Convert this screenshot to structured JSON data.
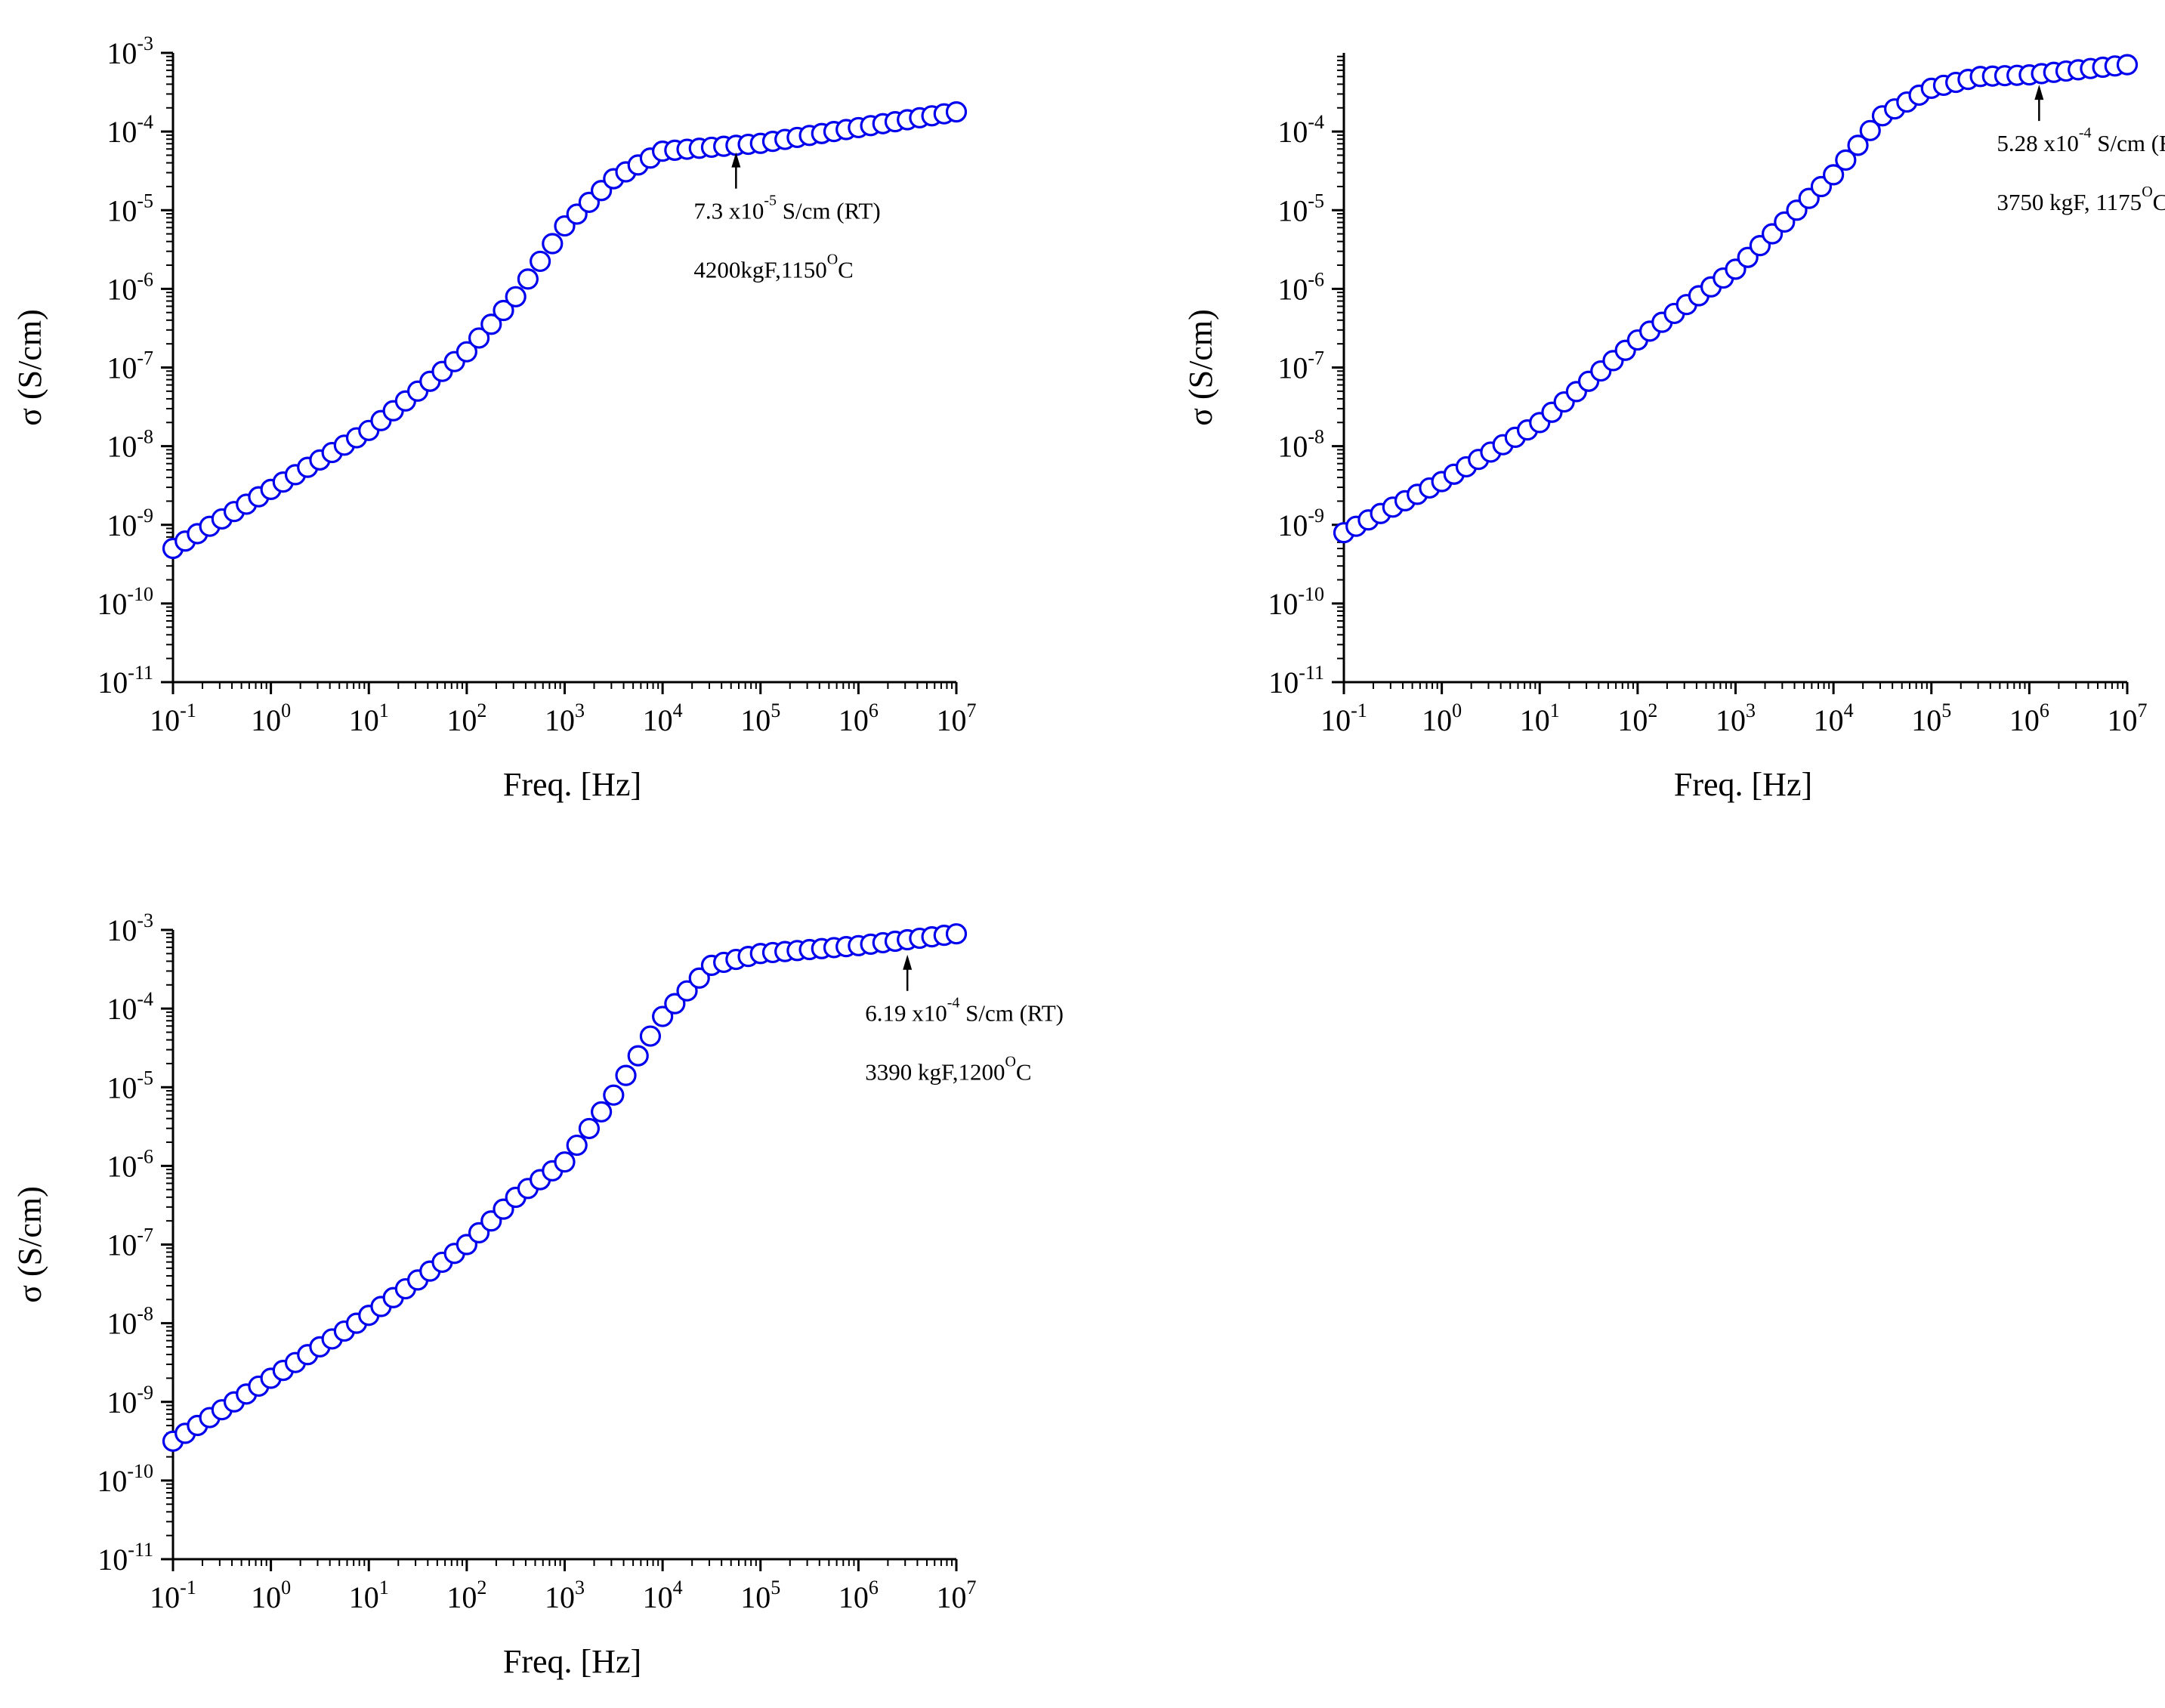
{
  "marker_color": "#0000EE",
  "chart_data": [
    {
      "type": "scatter",
      "title": "",
      "xlabel": "Freq. [Hz]",
      "ylabel": "σ (S/cm)",
      "xscale": "log",
      "yscale": "log",
      "xlim_exp": [
        -1,
        7
      ],
      "ylim_exp": [
        -11,
        -3
      ],
      "x_tick_labels": [
        {
          "base": "10",
          "exp": "-1"
        },
        {
          "base": "10",
          "exp": "0"
        },
        {
          "base": "10",
          "exp": "1"
        },
        {
          "base": "10",
          "exp": "2"
        },
        {
          "base": "10",
          "exp": "3"
        },
        {
          "base": "10",
          "exp": "4"
        },
        {
          "base": "10",
          "exp": "5"
        },
        {
          "base": "10",
          "exp": "6"
        },
        {
          "base": "10",
          "exp": "7"
        }
      ],
      "y_tick_labels": [
        {
          "base": "10",
          "exp": "-11"
        },
        {
          "base": "10",
          "exp": "-10"
        },
        {
          "base": "10",
          "exp": "-9"
        },
        {
          "base": "10",
          "exp": "-8"
        },
        {
          "base": "10",
          "exp": "-7"
        },
        {
          "base": "10",
          "exp": "-6"
        },
        {
          "base": "10",
          "exp": "-5"
        },
        {
          "base": "10",
          "exp": "-4"
        },
        {
          "base": "10",
          "exp": "-3"
        }
      ],
      "curve_knots_log": [
        [
          -1,
          -9.3
        ],
        [
          0,
          -8.55
        ],
        [
          1,
          -7.8
        ],
        [
          2,
          -6.8
        ],
        [
          2.5,
          -6.1
        ],
        [
          3,
          -5.2
        ],
        [
          3.5,
          -4.6
        ],
        [
          4,
          -4.25
        ],
        [
          5,
          -4.15
        ],
        [
          6,
          -3.95
        ],
        [
          7,
          -3.75
        ]
      ],
      "arrow_at_log": [
        4.75,
        -4.13
      ],
      "annotation_lines": [
        {
          "pre": "7.3 x10",
          "sup": "-5",
          "post": " S/cm (RT)"
        },
        {
          "pre": "4200kgF,1150",
          "sup": "O",
          "post": "C"
        }
      ]
    },
    {
      "type": "scatter",
      "title": "",
      "xlabel": "Freq. [Hz]",
      "ylabel": "σ (S/cm)",
      "xscale": "log",
      "yscale": "log",
      "xlim_exp": [
        -1,
        7
      ],
      "ylim_exp": [
        -11,
        -3
      ],
      "x_tick_labels": [
        {
          "base": "10",
          "exp": "-1"
        },
        {
          "base": "10",
          "exp": "0"
        },
        {
          "base": "10",
          "exp": "1"
        },
        {
          "base": "10",
          "exp": "2"
        },
        {
          "base": "10",
          "exp": "3"
        },
        {
          "base": "10",
          "exp": "4"
        },
        {
          "base": "10",
          "exp": "5"
        },
        {
          "base": "10",
          "exp": "6"
        },
        {
          "base": "10",
          "exp": "7"
        }
      ],
      "y_tick_labels": [
        {
          "base": "10",
          "exp": "-11"
        },
        {
          "base": "10",
          "exp": "-10"
        },
        {
          "base": "10",
          "exp": "-9"
        },
        {
          "base": "10",
          "exp": "-8"
        },
        {
          "base": "10",
          "exp": "-7"
        },
        {
          "base": "10",
          "exp": "-6"
        },
        {
          "base": "10",
          "exp": "-5"
        },
        {
          "base": "10",
          "exp": "-4"
        }
      ],
      "curve_knots_log": [
        [
          -1,
          -9.1
        ],
        [
          0,
          -8.45
        ],
        [
          1,
          -7.7
        ],
        [
          2,
          -6.65
        ],
        [
          3,
          -5.75
        ],
        [
          4,
          -4.55
        ],
        [
          4.5,
          -3.8
        ],
        [
          5,
          -3.45
        ],
        [
          5.5,
          -3.3
        ],
        [
          6,
          -3.28
        ],
        [
          7,
          -3.15
        ]
      ],
      "arrow_at_log": [
        6.1,
        -3.27
      ],
      "annotation_lines": [
        {
          "pre": "5.28 x10",
          "sup": "-4",
          "post": " S/cm (RT)"
        },
        {
          "pre": "3750 kgF, 1175",
          "sup": "O",
          "post": "C"
        }
      ]
    },
    {
      "type": "scatter",
      "title": "",
      "xlabel": "Freq. [Hz]",
      "ylabel": "σ (S/cm)",
      "xscale": "log",
      "yscale": "log",
      "xlim_exp": [
        -1,
        7
      ],
      "ylim_exp": [
        -11,
        -3
      ],
      "x_tick_labels": [
        {
          "base": "10",
          "exp": "-1"
        },
        {
          "base": "10",
          "exp": "0"
        },
        {
          "base": "10",
          "exp": "1"
        },
        {
          "base": "10",
          "exp": "2"
        },
        {
          "base": "10",
          "exp": "3"
        },
        {
          "base": "10",
          "exp": "4"
        },
        {
          "base": "10",
          "exp": "5"
        },
        {
          "base": "10",
          "exp": "6"
        },
        {
          "base": "10",
          "exp": "7"
        }
      ],
      "y_tick_labels": [
        {
          "base": "10",
          "exp": "-11"
        },
        {
          "base": "10",
          "exp": "-10"
        },
        {
          "base": "10",
          "exp": "-9"
        },
        {
          "base": "10",
          "exp": "-8"
        },
        {
          "base": "10",
          "exp": "-7"
        },
        {
          "base": "10",
          "exp": "-6"
        },
        {
          "base": "10",
          "exp": "-5"
        },
        {
          "base": "10",
          "exp": "-4"
        },
        {
          "base": "10",
          "exp": "-3"
        }
      ],
      "curve_knots_log": [
        [
          -1,
          -9.5
        ],
        [
          0,
          -8.7
        ],
        [
          1,
          -7.9
        ],
        [
          2,
          -7.0
        ],
        [
          2.5,
          -6.4
        ],
        [
          3,
          -5.95
        ],
        [
          3.5,
          -5.1
        ],
        [
          4,
          -4.1
        ],
        [
          4.5,
          -3.45
        ],
        [
          5,
          -3.3
        ],
        [
          6,
          -3.2
        ],
        [
          7,
          -3.05
        ]
      ],
      "arrow_at_log": [
        6.5,
        -3.18
      ],
      "annotation_lines": [
        {
          "pre": "6.19 x10",
          "sup": "-4",
          "post": " S/cm (RT)"
        },
        {
          "pre": "3390 kgF,1200",
          "sup": "O",
          "post": "C"
        }
      ]
    }
  ]
}
